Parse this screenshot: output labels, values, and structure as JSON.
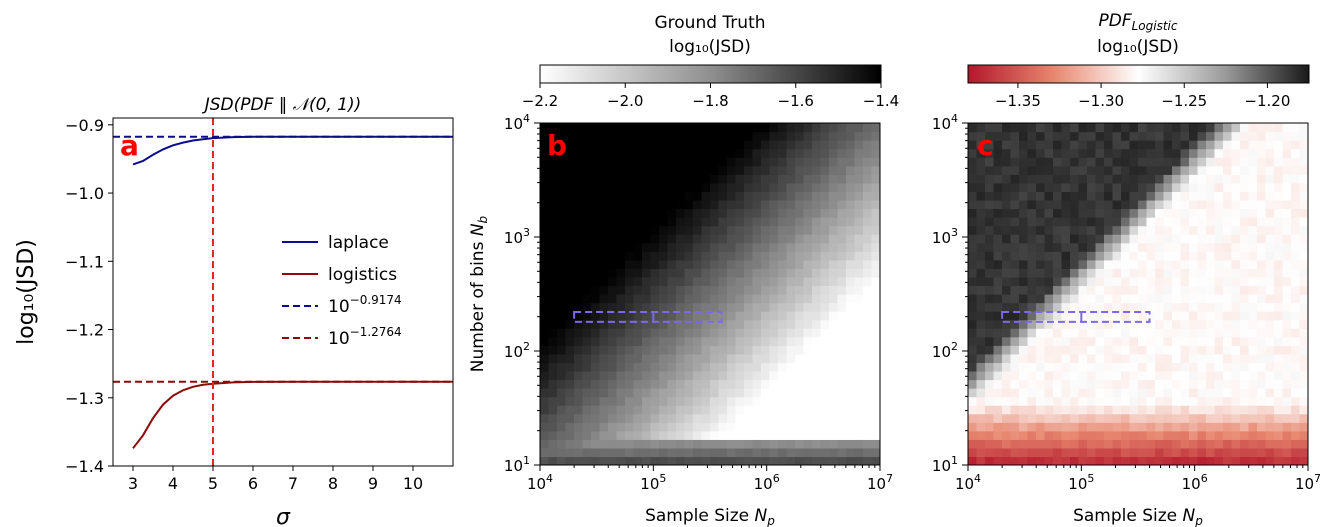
{
  "chart_data": [
    {
      "panel": "a",
      "type": "line",
      "title": "JSD(PDF ‖ 𝒩(0, 1))",
      "xlabel": "σ",
      "ylabel": "log₁₀(JSD)",
      "xlim": [
        2.5,
        11.0
      ],
      "ylim": [
        -1.4,
        -0.89
      ],
      "xticks": [
        "3",
        "4",
        "5",
        "6",
        "7",
        "8",
        "9",
        "10"
      ],
      "yticks": [
        "−0.9",
        "−1.0",
        "−1.1",
        "−1.2",
        "−1.3",
        "−1.4"
      ],
      "vline": {
        "x": 5,
        "color": "#e8251f"
      },
      "series": [
        {
          "name": "laplace",
          "color": "#0c0c8a",
          "style": "solid",
          "x": [
            3,
            3.25,
            3.5,
            3.75,
            4,
            4.25,
            4.5,
            4.75,
            5,
            5.5,
            6,
            7,
            8,
            9,
            10,
            11
          ],
          "y": [
            -0.958,
            -0.953,
            -0.944,
            -0.936,
            -0.93,
            -0.926,
            -0.923,
            -0.921,
            -0.9195,
            -0.918,
            -0.9176,
            -0.9175,
            -0.9174,
            -0.9174,
            -0.9174,
            -0.9174
          ]
        },
        {
          "name": "logistics",
          "color": "#8b0a0a",
          "style": "solid",
          "x": [
            3,
            3.25,
            3.5,
            3.75,
            4,
            4.25,
            4.5,
            4.75,
            5,
            5.5,
            6,
            7,
            8,
            9,
            10,
            11
          ],
          "y": [
            -1.374,
            -1.355,
            -1.33,
            -1.31,
            -1.297,
            -1.289,
            -1.284,
            -1.281,
            -1.2795,
            -1.2775,
            -1.2768,
            -1.2765,
            -1.2764,
            -1.2764,
            -1.2764,
            -1.2764
          ]
        },
        {
          "name": "10^-0.9174",
          "color": "#0c0c8a",
          "style": "dashed",
          "x": [
            2.5,
            11
          ],
          "y": [
            -0.9174,
            -0.9174
          ]
        },
        {
          "name": "10^-1.2764",
          "color": "#8b0a0a",
          "style": "dashed",
          "x": [
            2.5,
            11
          ],
          "y": [
            -1.2764,
            -1.2764
          ]
        }
      ],
      "legend": {
        "placement": "center-right",
        "entries": [
          {
            "label_base": "laplace",
            "label_exp": ""
          },
          {
            "label_base": "logistics",
            "label_exp": ""
          },
          {
            "label_base": "10",
            "label_exp": "−0.9174"
          },
          {
            "label_base": "10",
            "label_exp": "−1.2764"
          }
        ]
      }
    },
    {
      "panel": "b",
      "type": "heatmap",
      "title_line1": "Ground Truth",
      "title_line2": "log₁₀(JSD)",
      "colormap": "greys",
      "colorbar": {
        "range": [
          -2.2,
          -1.4
        ],
        "ticks": [
          "−2.2",
          "−2.0",
          "−1.8",
          "−1.6",
          "−1.4"
        ],
        "position": "top"
      },
      "xlabel": "Sample Size N_p",
      "ylabel": "Number of bins N_b",
      "xscale": "log",
      "yscale": "log",
      "xlim": [
        10000,
        10000000
      ],
      "ylim": [
        10,
        10000
      ],
      "xticks": [
        "10^4",
        "10^5",
        "10^6",
        "10^7"
      ],
      "yticks": [
        "10^1",
        "10^2",
        "10^3",
        "10^4"
      ],
      "dashed_box": {
        "x": [
          20000,
          400000
        ],
        "y": [
          180,
          220
        ],
        "color": "#7b68ee"
      }
    },
    {
      "panel": "c",
      "type": "heatmap",
      "title_line1": "PDF_Logistic",
      "title_line2": "log₁₀(JSD)",
      "colormap": "rdgy",
      "colorbar": {
        "range": [
          -1.38,
          -1.175
        ],
        "ticks": [
          "−1.35",
          "−1.30",
          "−1.25",
          "−1.20"
        ],
        "tick_values": [
          -1.35,
          -1.3,
          -1.25,
          -1.2
        ],
        "position": "top"
      },
      "xlabel": "Sample Size N_p",
      "ylabel": "",
      "xscale": "log",
      "yscale": "log",
      "xlim": [
        10000,
        10000000
      ],
      "ylim": [
        10,
        10000
      ],
      "xticks": [
        "10^4",
        "10^5",
        "10^6",
        "10^7"
      ],
      "yticks": [
        "10^1",
        "10^2",
        "10^3",
        "10^4"
      ],
      "dashed_box": {
        "x": [
          20000,
          400000
        ],
        "y": [
          180,
          220
        ],
        "color": "#7b68ee"
      }
    }
  ],
  "colors": {
    "laplace": "#0c0c8a",
    "logistics": "#8b0a0a",
    "vline": "#e8251f",
    "box": "#7b68ee",
    "panel_letter": "#ff0000"
  }
}
